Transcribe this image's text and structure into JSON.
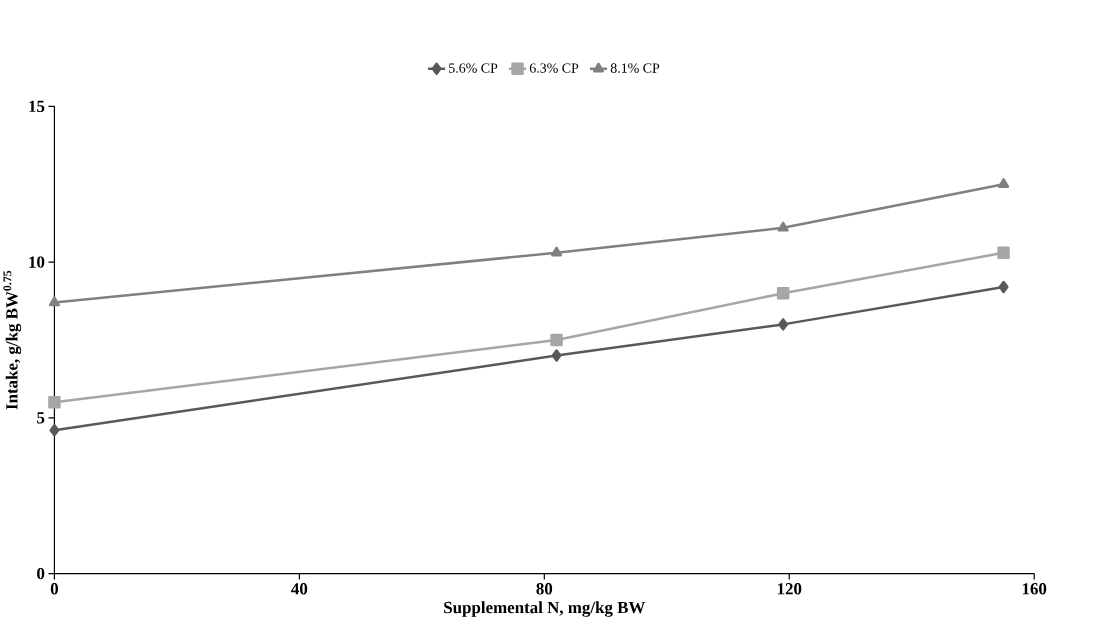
{
  "chart_data": {
    "type": "line",
    "xlabel": "Supplemental N, mg/kg BW",
    "ylabel": "Intake, g/kg BW$^{0.75}$",
    "x": [
      0,
      82,
      119,
      155
    ],
    "series": [
      {
        "name": "5.6% CP",
        "color": "#595959",
        "marker": "diamond",
        "values": [
          4.6,
          7.0,
          8.0,
          9.2
        ]
      },
      {
        "name": "6.3% CP",
        "color": "#a6a6a6",
        "marker": "square",
        "values": [
          5.5,
          7.5,
          9.0,
          10.3
        ]
      },
      {
        "name": "8.1% CP",
        "color": "#808080",
        "marker": "triangle",
        "values": [
          8.7,
          10.3,
          11.1,
          12.5
        ]
      }
    ],
    "xlim": [
      0,
      160
    ],
    "xticks": [
      0,
      40,
      80,
      120,
      160
    ],
    "ylim": [
      0,
      15
    ],
    "yticks": [
      0,
      5,
      10,
      15
    ],
    "grid": false,
    "legend": "top",
    "line_style": "solid"
  }
}
